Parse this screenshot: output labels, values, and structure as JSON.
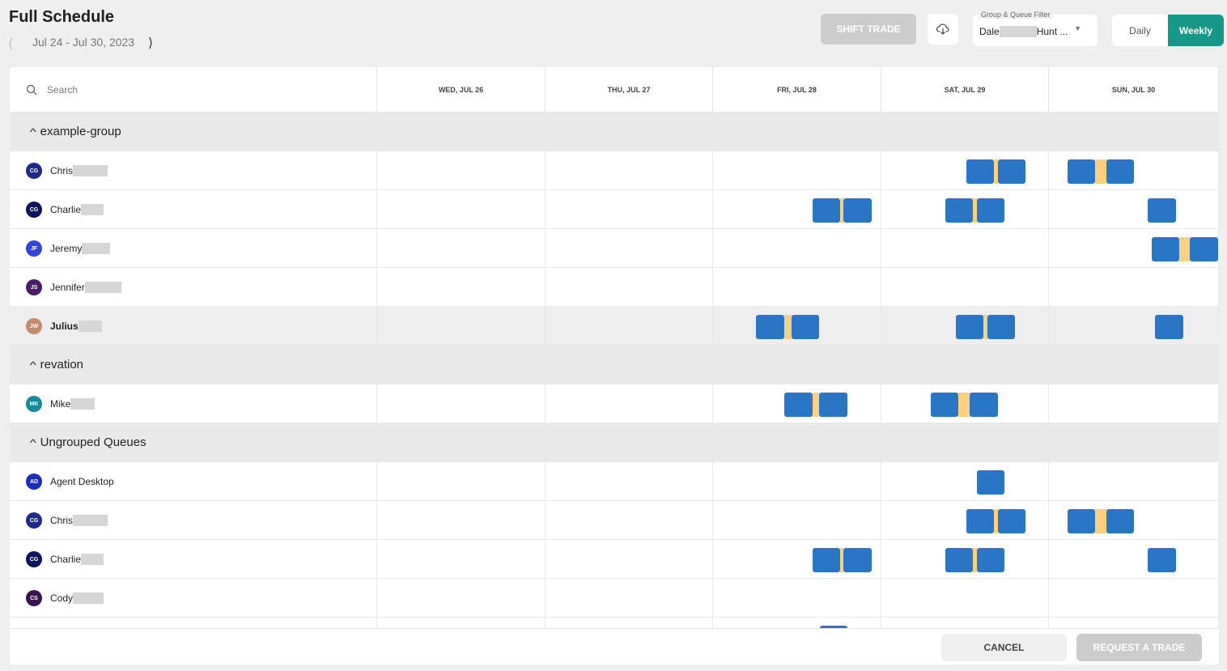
{
  "header": {
    "title": "Full Schedule",
    "date_range": "Jul 24 - Jul 30, 2023",
    "shift_trade": "SHIFT TRADE",
    "filter_label": "Group & Queue Filter",
    "filter_value_first": "Dale",
    "filter_value_last": "Hunt ...",
    "view_daily": "Daily",
    "view_weekly": "Weekly",
    "active_view": "Weekly"
  },
  "colors": {
    "accent": "#179787",
    "shift": "#2a76c6",
    "break": "#fbd07e"
  },
  "grid": {
    "search_placeholder": "Search",
    "days": [
      "WED, JUL 26",
      "THU, JUL 27",
      "FRI, JUL 28",
      "SAT, JUL 29",
      "SUN, JUL 30"
    ]
  },
  "rows": [
    {
      "type": "group",
      "label": "example-group"
    },
    {
      "type": "agent",
      "name": "Chris",
      "initials": "CG",
      "color": "#1f2a8a"
    },
    {
      "type": "agent",
      "name": "Charlie",
      "initials": "CG",
      "color": "#0d1560"
    },
    {
      "type": "agent",
      "name": "Jeremy",
      "initials": "JF",
      "color": "#3344e0"
    },
    {
      "type": "agent",
      "name": "Jennifer",
      "initials": "JS",
      "color": "#4a1c6a"
    },
    {
      "type": "agent",
      "name": "Julius",
      "initials": "JW",
      "color": "#c48c6a",
      "highlighted": true
    },
    {
      "type": "group",
      "label": "revation"
    },
    {
      "type": "agent",
      "name": "Mike",
      "initials": "MK",
      "color": "#148aa0"
    },
    {
      "type": "group",
      "label": "Ungrouped Queues"
    },
    {
      "type": "agent",
      "name": "Agent Desktop",
      "initials": "AD",
      "color": "#1a2fc0"
    },
    {
      "type": "agent",
      "name": "Chris",
      "initials": "CG",
      "color": "#1f2a8a"
    },
    {
      "type": "agent",
      "name": "Charlie",
      "initials": "CG",
      "color": "#0d1560"
    },
    {
      "type": "agent",
      "name": "Cody",
      "initials": "CS",
      "color": "#3a1450"
    },
    {
      "type": "agent",
      "name": "",
      "initials": "",
      "color": "#fff"
    }
  ],
  "footer": {
    "cancel": "CANCEL",
    "request": "REQUEST A TRADE"
  }
}
